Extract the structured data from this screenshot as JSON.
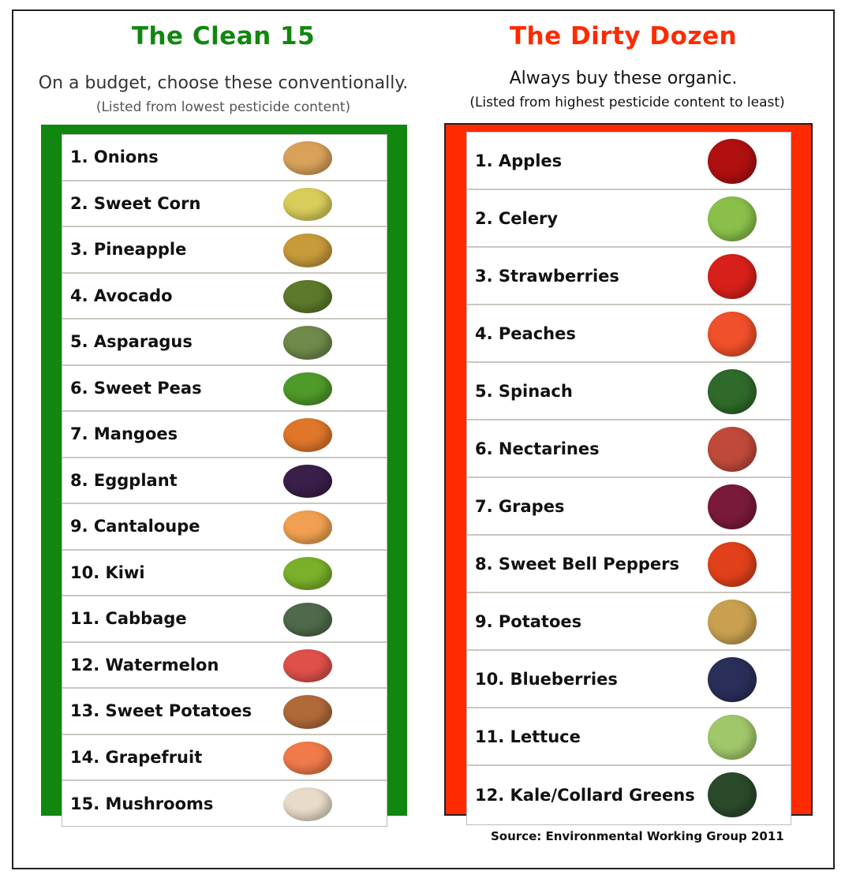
{
  "clean": {
    "title": "The Clean 15",
    "subtitle": "On a budget, choose these conventionally.",
    "note": "(Listed from lowest pesticide content)",
    "color": "#11870f",
    "items": [
      {
        "label": "1. Onions",
        "icon": "onion",
        "color": "#d9a15a"
      },
      {
        "label": "2. Sweet Corn",
        "icon": "corn",
        "color": "#d8cc5a"
      },
      {
        "label": "3. Pineapple",
        "icon": "pineapple",
        "color": "#c79a3a"
      },
      {
        "label": "4. Avocado",
        "icon": "avocado",
        "color": "#5d7a2a"
      },
      {
        "label": "5. Asparagus",
        "icon": "asparagus",
        "color": "#6f8a4a"
      },
      {
        "label": "6. Sweet Peas",
        "icon": "peas",
        "color": "#4f9a2a"
      },
      {
        "label": "7. Mangoes",
        "icon": "mango",
        "color": "#e0762a"
      },
      {
        "label": "8. Eggplant",
        "icon": "eggplant",
        "color": "#3a1f4a"
      },
      {
        "label": "9. Cantaloupe",
        "icon": "cantaloupe",
        "color": "#f0a050"
      },
      {
        "label": "10. Kiwi",
        "icon": "kiwi",
        "color": "#7ab02a"
      },
      {
        "label": "11. Cabbage",
        "icon": "cabbage",
        "color": "#4f6a4a"
      },
      {
        "label": "12. Watermelon",
        "icon": "watermelon",
        "color": "#e0504a"
      },
      {
        "label": "13. Sweet Potatoes",
        "icon": "sweet-potato",
        "color": "#b06a3a"
      },
      {
        "label": "14. Grapefruit",
        "icon": "grapefruit",
        "color": "#f07a4a"
      },
      {
        "label": "15. Mushrooms",
        "icon": "mushroom",
        "color": "#e8dcc8"
      }
    ]
  },
  "dirty": {
    "title": "The Dirty Dozen",
    "subtitle": "Always buy these organic.",
    "note": "(Listed from highest pesticide content to least)",
    "color": "#ff2a00",
    "items": [
      {
        "label": "1. Apples",
        "icon": "apple",
        "color": "#b01010"
      },
      {
        "label": "2. Celery",
        "icon": "celery",
        "color": "#8ac04a"
      },
      {
        "label": "3. Strawberries",
        "icon": "strawberry",
        "color": "#d8201a"
      },
      {
        "label": "4. Peaches",
        "icon": "peach",
        "color": "#f0502a"
      },
      {
        "label": "5. Spinach",
        "icon": "spinach",
        "color": "#2f6a2a"
      },
      {
        "label": "6. Nectarines",
        "icon": "nectarine",
        "color": "#c04a3a"
      },
      {
        "label": "7. Grapes",
        "icon": "grapes",
        "color": "#7a1a3a"
      },
      {
        "label": "8. Sweet Bell Peppers",
        "icon": "bell-pepper",
        "color": "#e0401a"
      },
      {
        "label": "9. Potatoes",
        "icon": "potato",
        "color": "#c8a050"
      },
      {
        "label": "10. Blueberries",
        "icon": "blueberries",
        "color": "#2a2f5a"
      },
      {
        "label": "11. Lettuce",
        "icon": "lettuce",
        "color": "#a0c86a"
      },
      {
        "label": "12. Kale/Collard Greens",
        "icon": "kale",
        "color": "#2a4a2a"
      }
    ]
  },
  "source": "Source: Environmental Working Group 2011"
}
